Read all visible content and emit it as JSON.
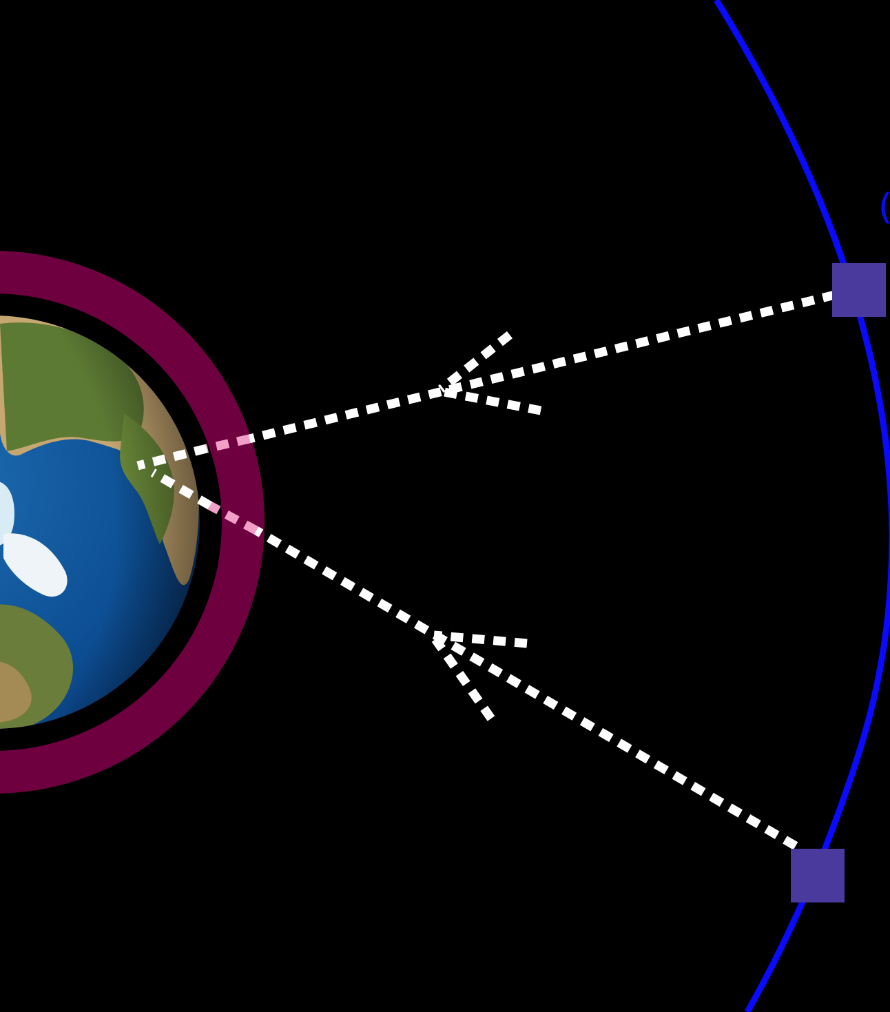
{
  "diagram": {
    "orbit_label": "(",
    "colors": {
      "background": "#000000",
      "orbit": "#0a0aff",
      "atmosphere": "#6e0040",
      "ocean": "#0d4f94",
      "ocean_deep": "#0a3b78",
      "land_green": "#5d7a34",
      "land_tan": "#c7a771",
      "ice": "#eef4f8",
      "satellite": "#4a3a9e",
      "signal": "#ffffff",
      "signal_in_atmosphere": "#f2a0c8"
    },
    "icons": {
      "earth": "earth-globe-icon",
      "satellite": "satellite-square-icon",
      "signal": "dotted-signal-path"
    }
  }
}
